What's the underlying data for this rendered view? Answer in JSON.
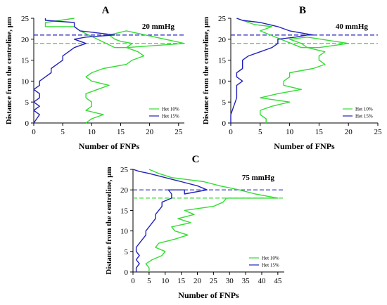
{
  "chart_data": [
    {
      "type": "line",
      "panel": "A",
      "annotation": "20 mmHg",
      "xlabel": "Number of FNPs",
      "ylabel": "Distance from the centreline, μm",
      "xlim": [
        0,
        26
      ],
      "ylim": [
        0,
        25
      ],
      "xticks": [
        0,
        5,
        10,
        15,
        20,
        25
      ],
      "yticks": [
        0,
        5,
        10,
        15,
        20,
        25
      ],
      "legend": "bottom-right",
      "reference_lines": [
        {
          "series": "Het 10%",
          "y": 19,
          "style": "dashed",
          "color": "#33dd33"
        },
        {
          "series": "Het 15%",
          "y": 21,
          "style": "dashed",
          "color": "#2222bb"
        }
      ],
      "series": [
        {
          "name": "Het 10%",
          "color": "#33dd33",
          "x": [
            9,
            10,
            12,
            9,
            10,
            10,
            9,
            9,
            11,
            13,
            10,
            9,
            10,
            12,
            16,
            17,
            19,
            18,
            16,
            17,
            15,
            14,
            13,
            16,
            26,
            16,
            14,
            8,
            7,
            2,
            2,
            7
          ],
          "y": [
            0,
            1,
            2,
            3,
            4,
            5,
            6,
            7,
            8,
            9,
            10,
            11,
            12,
            13,
            14,
            15,
            16,
            17,
            18,
            19,
            19.5,
            20,
            21,
            22,
            19,
            18,
            18,
            22,
            23,
            23,
            24,
            25
          ]
        },
        {
          "name": "Het 15%",
          "color": "#2222bb",
          "x": [
            0,
            1,
            0,
            1,
            0,
            1,
            1,
            0,
            1,
            1,
            2,
            3,
            3,
            4,
            5,
            5,
            6,
            7,
            9,
            7,
            9,
            14,
            8,
            7,
            7,
            2,
            2
          ],
          "y": [
            0,
            2,
            3,
            4,
            5,
            6,
            7,
            8,
            9,
            10,
            11,
            12,
            13,
            14,
            15,
            16,
            17,
            18,
            19,
            20,
            20.5,
            21,
            22,
            23,
            24,
            24.5,
            25
          ]
        }
      ]
    },
    {
      "type": "line",
      "panel": "B",
      "annotation": "40 mmHg",
      "xlabel": "Number of FNPs",
      "ylabel": "Distance from the centreline, μm",
      "xlim": [
        0,
        25
      ],
      "ylim": [
        0,
        25
      ],
      "xticks": [
        0,
        5,
        10,
        15,
        20,
        25
      ],
      "yticks": [
        0,
        5,
        10,
        15,
        20,
        25
      ],
      "legend": "bottom-right",
      "reference_lines": [
        {
          "series": "Het 10%",
          "y": 19,
          "style": "dashed",
          "color": "#33dd33"
        },
        {
          "series": "Het 15%",
          "y": 21,
          "style": "dashed",
          "color": "#2222bb"
        }
      ],
      "series": [
        {
          "name": "Het 10%",
          "color": "#33dd33",
          "x": [
            6,
            6,
            5,
            5,
            7,
            10,
            5,
            8,
            12,
            9,
            9,
            10,
            10,
            14,
            16,
            15,
            15,
            16,
            13,
            12,
            10,
            13,
            20,
            15,
            12,
            5,
            7,
            4,
            3,
            1
          ],
          "y": [
            0,
            1,
            2,
            3,
            4,
            5,
            6,
            7,
            8,
            9,
            10,
            11,
            12,
            13,
            14,
            15,
            16,
            17,
            18,
            19,
            20,
            20.5,
            19,
            18,
            18,
            22,
            23,
            23.5,
            24,
            25
          ]
        },
        {
          "name": "Het 15%",
          "color": "#2222bb",
          "x": [
            0,
            0,
            1,
            1,
            1,
            1,
            2,
            1,
            1,
            2,
            2,
            2,
            3,
            5,
            7,
            8,
            8,
            11,
            13,
            14,
            10,
            8,
            5,
            2,
            1
          ],
          "y": [
            0,
            2,
            6,
            7,
            8,
            9,
            10,
            11,
            12,
            13,
            14,
            15,
            16,
            17,
            18,
            19,
            20,
            20.5,
            21,
            21,
            22,
            23,
            24,
            24.5,
            25
          ]
        }
      ]
    },
    {
      "type": "line",
      "panel": "C",
      "annotation": "75 mmHg",
      "xlabel": "Number of FNPs",
      "ylabel": "Distance from the centreline, μm",
      "xlim": [
        0,
        47
      ],
      "ylim": [
        0,
        25
      ],
      "xticks": [
        0,
        5,
        10,
        15,
        20,
        25,
        30,
        35,
        40,
        45
      ],
      "yticks": [
        0,
        5,
        10,
        15,
        20,
        25
      ],
      "legend": "bottom-right",
      "reference_lines": [
        {
          "series": "Het 10%",
          "y": 18,
          "style": "dashed",
          "color": "#33dd33"
        },
        {
          "series": "Het 15%",
          "y": 20,
          "style": "dashed",
          "color": "#2222bb"
        }
      ],
      "series": [
        {
          "name": "Het 10%",
          "color": "#33dd33",
          "x": [
            5,
            5,
            4,
            6,
            9,
            10,
            7,
            8,
            13,
            17,
            13,
            12,
            18,
            14,
            19,
            16,
            25,
            28,
            29,
            45,
            38,
            33,
            27,
            22,
            12,
            8,
            5
          ],
          "y": [
            0,
            1,
            2,
            3,
            4,
            5,
            6,
            7,
            8,
            9,
            10,
            11,
            12,
            13,
            14,
            15,
            16,
            17,
            18,
            18,
            19,
            20,
            21,
            22,
            23,
            24,
            25
          ]
        },
        {
          "name": "Het 15%",
          "color": "#2222bb",
          "x": [
            1,
            1,
            2,
            1,
            2,
            1,
            1,
            2,
            3,
            4,
            4,
            5,
            6,
            7,
            7,
            8,
            9,
            9,
            12,
            12,
            11,
            16,
            16,
            23,
            20,
            15,
            10,
            5,
            2,
            0
          ],
          "y": [
            0,
            1,
            2,
            3,
            4,
            5,
            6,
            7,
            8,
            9,
            10,
            11,
            12,
            13,
            14,
            15,
            16,
            17,
            18,
            19,
            20,
            20,
            19,
            20,
            21,
            22,
            23,
            24,
            24.5,
            25
          ]
        }
      ]
    }
  ]
}
